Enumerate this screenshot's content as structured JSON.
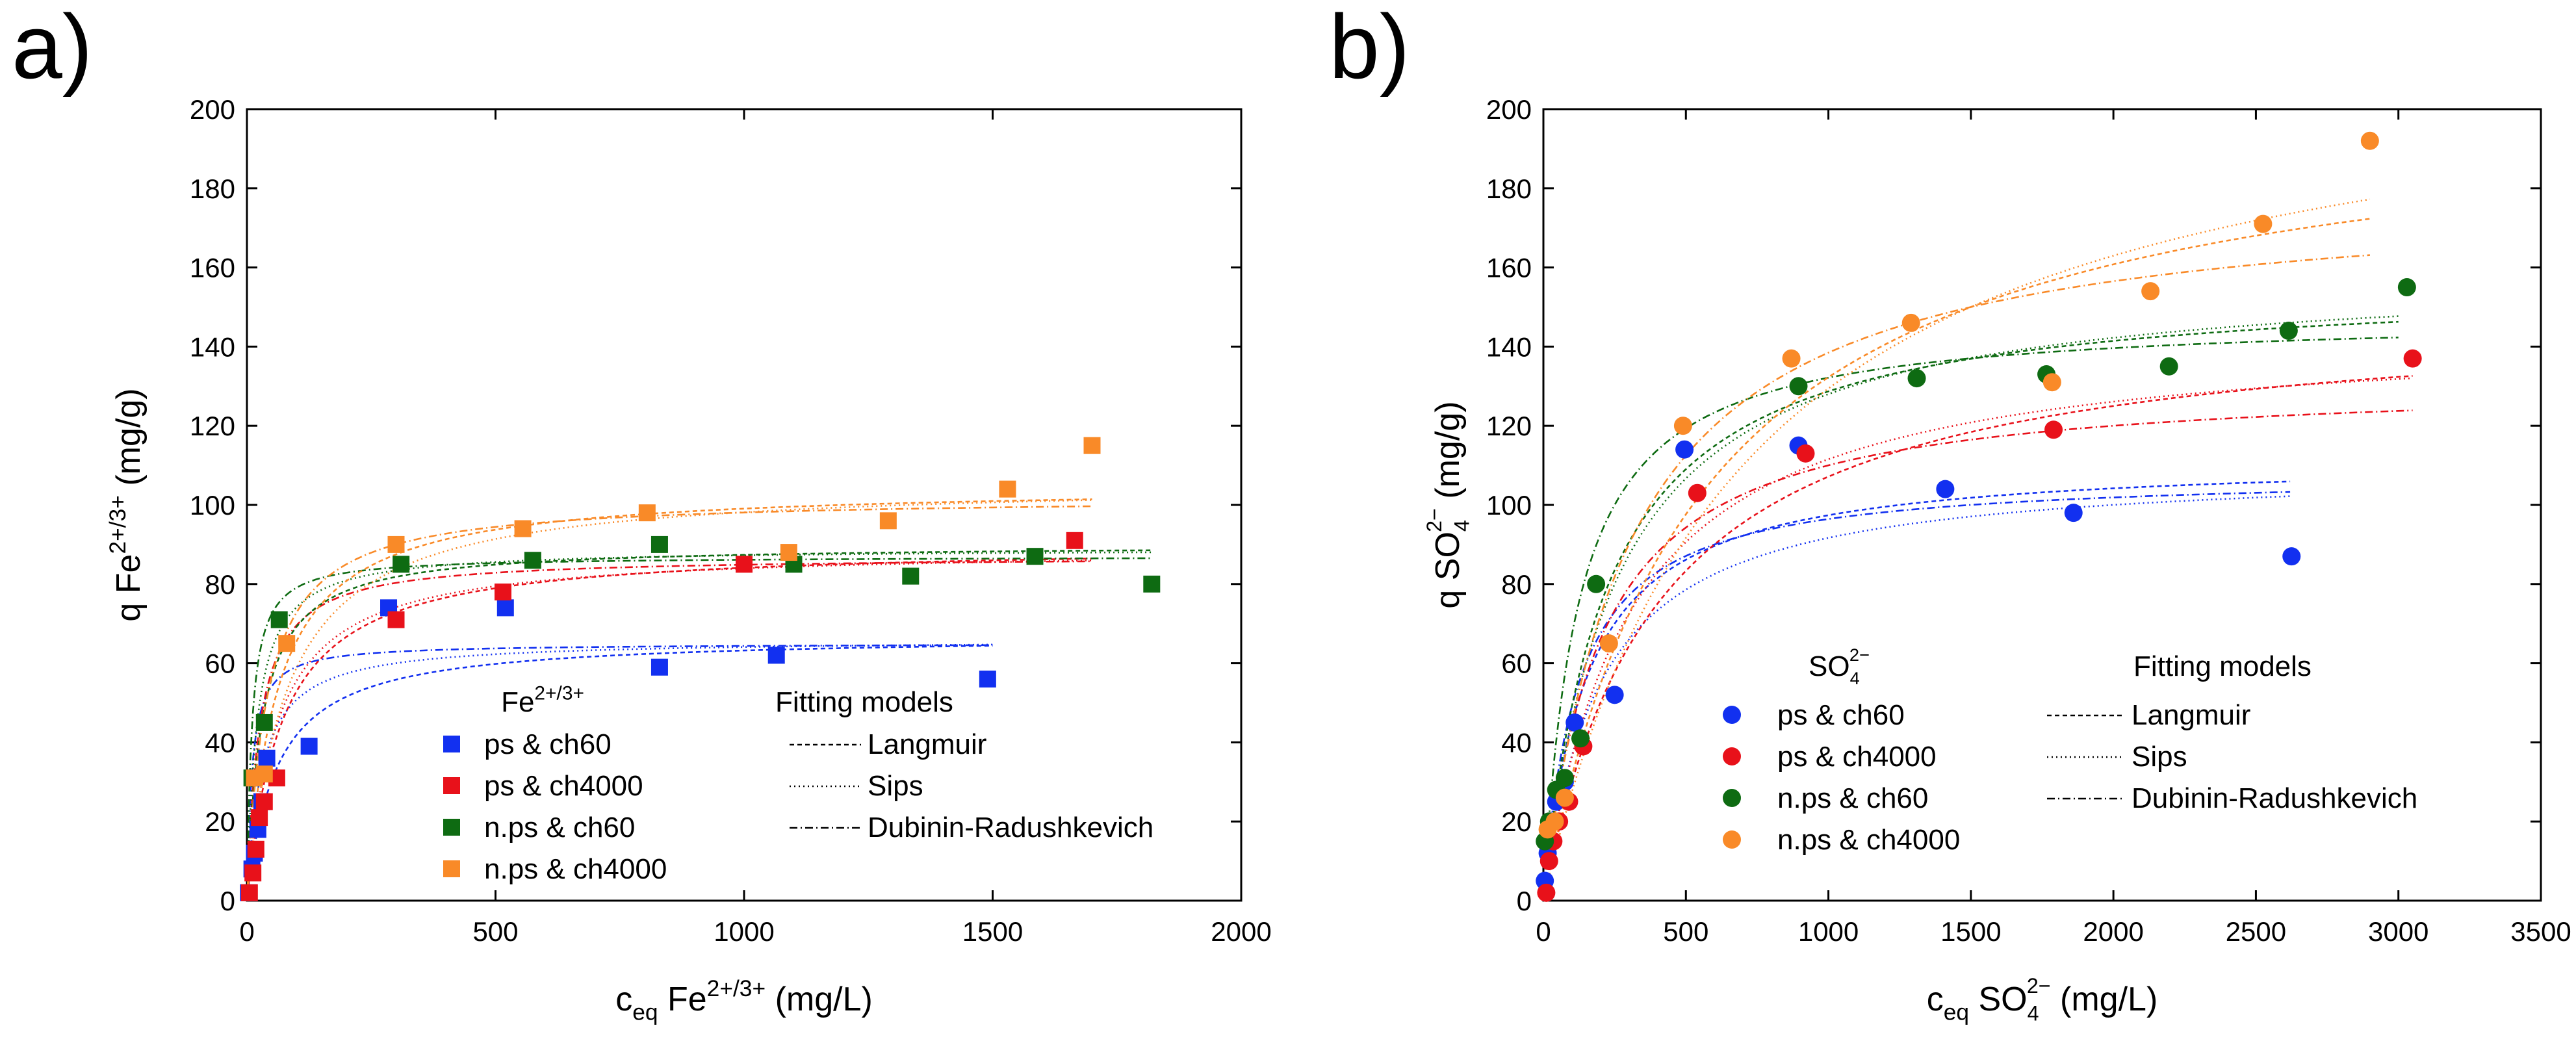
{
  "chart_data": [
    {
      "type": "scatter",
      "panel_label": "a)",
      "xlabel": {
        "prefix": "c",
        "sub": "eq",
        "body": " Fe",
        "sup": "2+/3+",
        "suffix": " (mg/L)"
      },
      "ylabel": {
        "prefix": "q Fe",
        "sup": "2+/3+",
        "suffix": " (mg/g)"
      },
      "xlim": [
        0,
        2000
      ],
      "ylim": [
        0,
        200
      ],
      "xticks": [
        0,
        500,
        1000,
        1500,
        2000
      ],
      "yticks": [
        0,
        20,
        40,
        60,
        80,
        100,
        120,
        140,
        160,
        180,
        200
      ],
      "marker": "square",
      "legend_title": {
        "body": "Fe",
        "sup": "2+/3+"
      },
      "fitting_title": "Fitting models",
      "fitting_models": [
        "Langmuir",
        "Sips",
        "Dubinin-Radushkevich"
      ],
      "series": [
        {
          "name": "ps & ch60",
          "color": "#1230F0",
          "points": [
            [
              3,
              2
            ],
            [
              10,
              8
            ],
            [
              15,
              12
            ],
            [
              22,
              18
            ],
            [
              30,
              25
            ],
            [
              40,
              36
            ],
            [
              125,
              39
            ],
            [
              285,
              74
            ],
            [
              520,
              74
            ],
            [
              830,
              59
            ],
            [
              1065,
              62
            ],
            [
              1490,
              56
            ]
          ],
          "fits": {
            "langmuir": [
              60,
              67
            ],
            "sips": [
              30,
              66
            ],
            "dr": [
              10,
              65
            ],
            "xmax": 1500
          }
        },
        {
          "name": "ps & ch4000",
          "color": "#E8111A",
          "points": [
            [
              5,
              2
            ],
            [
              12,
              7
            ],
            [
              18,
              13
            ],
            [
              25,
              21
            ],
            [
              35,
              25
            ],
            [
              60,
              31
            ],
            [
              300,
              71
            ],
            [
              515,
              78
            ],
            [
              1000,
              85
            ],
            [
              1665,
              91
            ]
          ],
          "fits": {
            "langmuir": [
              70,
              90
            ],
            "sips": [
              60,
              89
            ],
            "dr": [
              25,
              87
            ],
            "xmax": 1700
          }
        },
        {
          "name": "n.ps & ch60",
          "color": "#0E6B12",
          "points": [
            [
              10,
              31
            ],
            [
              35,
              45
            ],
            [
              65,
              71
            ],
            [
              310,
              85
            ],
            [
              575,
              86
            ],
            [
              830,
              90
            ],
            [
              1100,
              85
            ],
            [
              1335,
              82
            ],
            [
              1585,
              87
            ],
            [
              1820,
              80
            ]
          ],
          "fits": {
            "langmuir": [
              30,
              90
            ],
            "sips": [
              20,
              89
            ],
            "dr": [
              10,
              87
            ],
            "xmax": 1820
          }
        },
        {
          "name": "n.ps & ch4000",
          "color": "#F98A28",
          "points": [
            [
              15,
              31
            ],
            [
              35,
              32
            ],
            [
              80,
              65
            ],
            [
              300,
              90
            ],
            [
              555,
              94
            ],
            [
              805,
              98
            ],
            [
              1090,
              88
            ],
            [
              1290,
              96
            ],
            [
              1530,
              104
            ],
            [
              1700,
              115
            ]
          ],
          "fits": {
            "langmuir": [
              60,
              105
            ],
            "sips": [
              80,
              106
            ],
            "dr": [
              40,
              102
            ],
            "xmax": 1700
          }
        }
      ]
    },
    {
      "type": "scatter",
      "panel_label": "b)",
      "xlabel": {
        "prefix": "c",
        "sub": "eq",
        "body": " SO",
        "subsup": [
          "4",
          "2−"
        ],
        "suffix": " (mg/L)"
      },
      "ylabel": {
        "prefix": "q SO",
        "subsup": [
          "4",
          "2−"
        ],
        "suffix": " (mg/g)"
      },
      "xlim": [
        0,
        3500
      ],
      "ylim": [
        0,
        200
      ],
      "xticks": [
        0,
        500,
        1000,
        1500,
        2000,
        2500,
        3000,
        3500
      ],
      "yticks": [
        0,
        20,
        40,
        60,
        80,
        100,
        120,
        140,
        160,
        180,
        200
      ],
      "marker": "circle",
      "legend_title": {
        "body": "SO",
        "subsup": [
          "4",
          "2−"
        ]
      },
      "fitting_title": "Fitting models",
      "fitting_models": [
        "Langmuir",
        "Sips",
        "Dubinin-Radushkevich"
      ],
      "series": [
        {
          "name": "ps & ch60",
          "color": "#1230F0",
          "points": [
            [
              5,
              5
            ],
            [
              15,
              12
            ],
            [
              25,
              20
            ],
            [
              45,
              25
            ],
            [
              75,
              30
            ],
            [
              110,
              45
            ],
            [
              250,
              52
            ],
            [
              495,
              114
            ],
            [
              895,
              115
            ],
            [
              1410,
              104
            ],
            [
              1860,
              98
            ],
            [
              2625,
              87
            ]
          ],
          "fits": {
            "langmuir": [
              150,
              112
            ],
            "sips": [
              200,
              110
            ],
            "dr": [
              120,
              108
            ],
            "xmax": 2620
          }
        },
        {
          "name": "ps & ch4000",
          "color": "#E8111A",
          "points": [
            [
              10,
              2
            ],
            [
              20,
              10
            ],
            [
              35,
              15
            ],
            [
              55,
              20
            ],
            [
              90,
              25
            ],
            [
              140,
              39
            ],
            [
              540,
              103
            ],
            [
              920,
              113
            ],
            [
              1790,
              119
            ],
            [
              3050,
              137
            ]
          ],
          "fits": {
            "langmuir": [
              400,
              150
            ],
            "sips": [
              300,
              145
            ],
            "dr": [
              200,
              132
            ],
            "xmax": 3050
          }
        },
        {
          "name": "n.ps & ch60",
          "color": "#0E6B12",
          "points": [
            [
              5,
              15
            ],
            [
              20,
              20
            ],
            [
              45,
              28
            ],
            [
              75,
              31
            ],
            [
              130,
              41
            ],
            [
              185,
              80
            ],
            [
              895,
              130
            ],
            [
              1310,
              132
            ],
            [
              1765,
              133
            ],
            [
              2195,
              135
            ],
            [
              2615,
              144
            ],
            [
              3030,
              155
            ]
          ],
          "fits": {
            "langmuir": [
              220,
              157
            ],
            "sips": [
              250,
              160
            ],
            "dr": [
              120,
              148
            ],
            "xmax": 3000
          }
        },
        {
          "name": "n.ps & ch4000",
          "color": "#F98A28",
          "points": [
            [
              15,
              18
            ],
            [
              40,
              20
            ],
            [
              75,
              26
            ],
            [
              230,
              65
            ],
            [
              490,
              120
            ],
            [
              870,
              137
            ],
            [
              1290,
              146
            ],
            [
              1785,
              131
            ],
            [
              2130,
              154
            ],
            [
              2525,
              171
            ],
            [
              2900,
              192
            ]
          ],
          "fits": {
            "langmuir": [
              550,
              205
            ],
            "sips": [
              700,
              220
            ],
            "dr": [
              300,
              180
            ],
            "xmax": 2900
          }
        }
      ]
    }
  ]
}
